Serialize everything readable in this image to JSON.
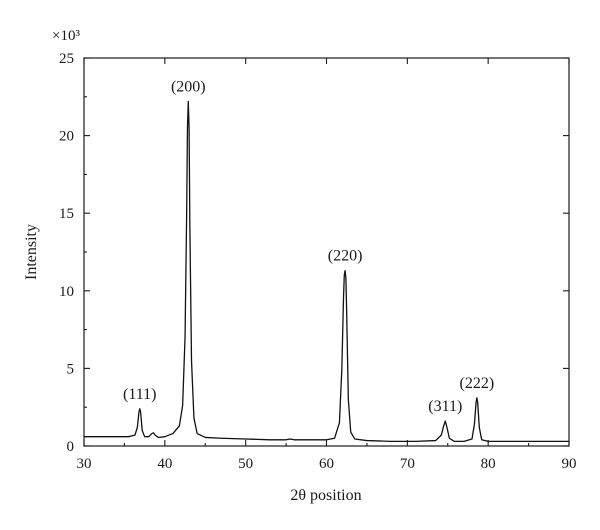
{
  "chart_data": {
    "type": "line",
    "xlabel": "2θ position",
    "ylabel": "Intensity",
    "y_scale_label": "×10³",
    "xlim": [
      30,
      90
    ],
    "ylim": [
      0,
      25
    ],
    "x_ticks": [
      30,
      40,
      50,
      60,
      70,
      80,
      90
    ],
    "y_ticks": [
      0,
      5,
      10,
      15,
      20,
      25
    ],
    "grid": false,
    "line_color": "#111111",
    "peaks": [
      {
        "label": "(111)",
        "x": 36.9,
        "y": 2.4
      },
      {
        "label": "(200)",
        "x": 42.9,
        "y": 22.2
      },
      {
        "label": "(220)",
        "x": 62.3,
        "y": 11.3
      },
      {
        "label": "(311)",
        "x": 74.7,
        "y": 1.6
      },
      {
        "label": "(222)",
        "x": 78.6,
        "y": 3.1
      }
    ],
    "series": [
      {
        "x": [
          30,
          32,
          34,
          35.5,
          36.3,
          36.6,
          36.8,
          36.9,
          37.0,
          37.2,
          37.5,
          38.0,
          38.4,
          38.6,
          38.8,
          39.2,
          40.0,
          41.0,
          41.8,
          42.2,
          42.5,
          42.7,
          42.8,
          42.9,
          43.0,
          43.1,
          43.3,
          43.6,
          44.0,
          45.0,
          47.0,
          50.0,
          53.0,
          55.0,
          55.5,
          56.0,
          58.0,
          60.0,
          61.0,
          61.6,
          61.9,
          62.1,
          62.2,
          62.3,
          62.4,
          62.5,
          62.7,
          63.0,
          63.5,
          65.0,
          68.0,
          71.0,
          73.5,
          74.2,
          74.5,
          74.7,
          74.9,
          75.2,
          75.8,
          77.0,
          78.0,
          78.3,
          78.5,
          78.6,
          78.7,
          78.9,
          79.2,
          80.0,
          82.0,
          85.0,
          88.0,
          90.0
        ],
        "y": [
          0.6,
          0.6,
          0.6,
          0.6,
          0.7,
          1.2,
          2.2,
          2.4,
          2.2,
          1.0,
          0.6,
          0.6,
          0.8,
          0.85,
          0.7,
          0.55,
          0.6,
          0.8,
          1.3,
          2.6,
          7.0,
          15.0,
          20.5,
          22.2,
          20.5,
          14.0,
          5.5,
          1.8,
          0.8,
          0.55,
          0.5,
          0.45,
          0.4,
          0.4,
          0.45,
          0.4,
          0.4,
          0.4,
          0.5,
          1.5,
          5.0,
          9.5,
          11.0,
          11.3,
          10.8,
          8.5,
          3.0,
          0.9,
          0.45,
          0.35,
          0.3,
          0.3,
          0.35,
          0.7,
          1.3,
          1.6,
          1.2,
          0.5,
          0.3,
          0.3,
          0.45,
          1.4,
          2.8,
          3.1,
          2.8,
          1.2,
          0.4,
          0.3,
          0.3,
          0.3,
          0.3,
          0.3
        ]
      }
    ]
  }
}
